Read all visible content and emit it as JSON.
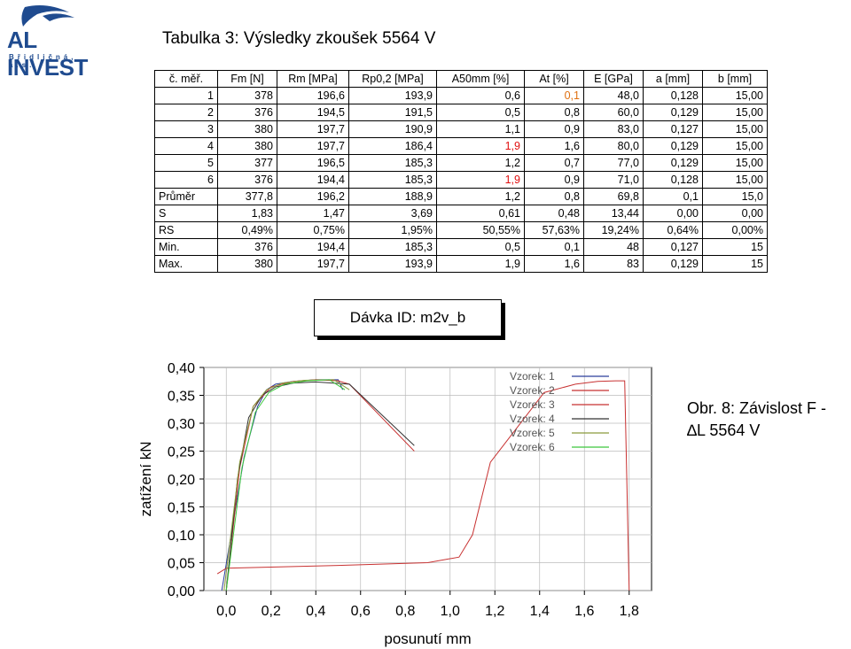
{
  "logo": {
    "name": "AL INVEST",
    "sub": "Břidličná, a.s."
  },
  "page_title": "Tabulka 3: Výsledky zkoušek 5564 V",
  "table": {
    "headers": [
      "č. měř.",
      "Fm [N]",
      "Rm [MPa]",
      "Rp0,2 [MPa]",
      "A50mm [%]",
      "At [%]",
      "E [GPa]",
      "a [mm]",
      "b [mm]"
    ],
    "rows": [
      [
        "1",
        "378",
        "196,6",
        "193,9",
        "0,6",
        "0,1",
        "48,0",
        "0,128",
        "15,00"
      ],
      [
        "2",
        "376",
        "194,5",
        "191,5",
        "0,5",
        "0,8",
        "60,0",
        "0,129",
        "15,00"
      ],
      [
        "3",
        "380",
        "197,7",
        "190,9",
        "1,1",
        "0,9",
        "83,0",
        "0,127",
        "15,00"
      ],
      [
        "4",
        "380",
        "197,7",
        "186,4",
        "1,9",
        "1,6",
        "80,0",
        "0,129",
        "15,00"
      ],
      [
        "5",
        "377",
        "196,5",
        "185,3",
        "1,2",
        "0,7",
        "77,0",
        "0,129",
        "15,00"
      ],
      [
        "6",
        "376",
        "194,4",
        "185,3",
        "1,9",
        "0,9",
        "71,0",
        "0,128",
        "15,00"
      ]
    ],
    "highlights": {
      "0-5": "#e07010",
      "3-4": "#e01010",
      "5-4": "#e01010"
    },
    "stats": [
      [
        "Průměr",
        "377,8",
        "196,2",
        "188,9",
        "1,2",
        "0,8",
        "69,8",
        "0,1",
        "15,0"
      ],
      [
        "S",
        "1,83",
        "1,47",
        "3,69",
        "0,61",
        "0,48",
        "13,44",
        "0,00",
        "0,00"
      ],
      [
        "RS",
        "0,49%",
        "0,75%",
        "1,95%",
        "50,55%",
        "57,63%",
        "19,24%",
        "0,64%",
        "0,00%"
      ],
      [
        "Min.",
        "376",
        "194,4",
        "185,3",
        "0,5",
        "0,1",
        "48",
        "0,127",
        "15"
      ],
      [
        "Max.",
        "380",
        "197,7",
        "193,9",
        "1,9",
        "1,6",
        "83",
        "0,129",
        "15"
      ]
    ]
  },
  "batch_label": "Dávka ID: m2v_b",
  "figure_caption": [
    "Obr. 8: Závislost F -",
    "∆L 5564 V"
  ],
  "chart_data": {
    "type": "line",
    "xlabel": "posunutí mm",
    "ylabel": "zatížení kN",
    "xlim": [
      -0.1,
      1.9
    ],
    "ylim": [
      0.0,
      0.4
    ],
    "xticks": [
      "0,0",
      "0,2",
      "0,4",
      "0,6",
      "0,8",
      "1,0",
      "1,2",
      "1,4",
      "1,6",
      "1,8"
    ],
    "yticks": [
      "0,00",
      "0,05",
      "0,10",
      "0,15",
      "0,20",
      "0,25",
      "0,30",
      "0,35",
      "0,40"
    ],
    "xtick_values": [
      0.0,
      0.2,
      0.4,
      0.6,
      0.8,
      1.0,
      1.2,
      1.4,
      1.6,
      1.8
    ],
    "ytick_values": [
      0.0,
      0.05,
      0.1,
      0.15,
      0.2,
      0.25,
      0.3,
      0.35,
      0.4
    ],
    "legend_position": "top-right",
    "series": [
      {
        "name": "Vzorek: 1",
        "color": "#2a3d9c",
        "x": [
          -0.02,
          0.08,
          0.14,
          0.18,
          0.22,
          0.3,
          0.4,
          0.5,
          0.52
        ],
        "y": [
          0.0,
          0.24,
          0.33,
          0.36,
          0.37,
          0.375,
          0.378,
          0.378,
          0.36
        ]
      },
      {
        "name": "Vzorek: 2",
        "color": "#c83232",
        "x": [
          -0.04,
          0.0,
          0.5,
          0.9,
          1.04,
          1.1,
          1.18,
          1.42,
          1.56,
          1.66,
          1.74,
          1.78,
          1.8
        ],
        "y": [
          0.03,
          0.04,
          0.045,
          0.05,
          0.06,
          0.1,
          0.23,
          0.355,
          0.37,
          0.375,
          0.376,
          0.376,
          0.0
        ]
      },
      {
        "name": "Vzorek: 3",
        "color": "#c83232",
        "x": [
          0.0,
          0.06,
          0.12,
          0.2,
          0.3,
          0.4,
          0.5,
          0.55,
          0.84
        ],
        "y": [
          0.0,
          0.22,
          0.33,
          0.365,
          0.375,
          0.378,
          0.376,
          0.37,
          0.25
        ]
      },
      {
        "name": "Vzorek: 4",
        "color": "#333333",
        "x": [
          0.0,
          0.05,
          0.1,
          0.16,
          0.22,
          0.3,
          0.4,
          0.55,
          0.84
        ],
        "y": [
          0.0,
          0.2,
          0.31,
          0.35,
          0.365,
          0.372,
          0.374,
          0.37,
          0.26
        ]
      },
      {
        "name": "Vzorek: 5",
        "color": "#8a9a3c",
        "x": [
          -0.01,
          0.06,
          0.12,
          0.18,
          0.25,
          0.35,
          0.48,
          0.55
        ],
        "y": [
          0.0,
          0.23,
          0.33,
          0.36,
          0.372,
          0.377,
          0.378,
          0.36
        ]
      },
      {
        "name": "Vzorek: 6",
        "color": "#3cc83c",
        "x": [
          0.0,
          0.07,
          0.13,
          0.19,
          0.26,
          0.36,
          0.46,
          0.53
        ],
        "y": [
          0.0,
          0.22,
          0.32,
          0.355,
          0.37,
          0.376,
          0.378,
          0.36
        ]
      }
    ]
  }
}
